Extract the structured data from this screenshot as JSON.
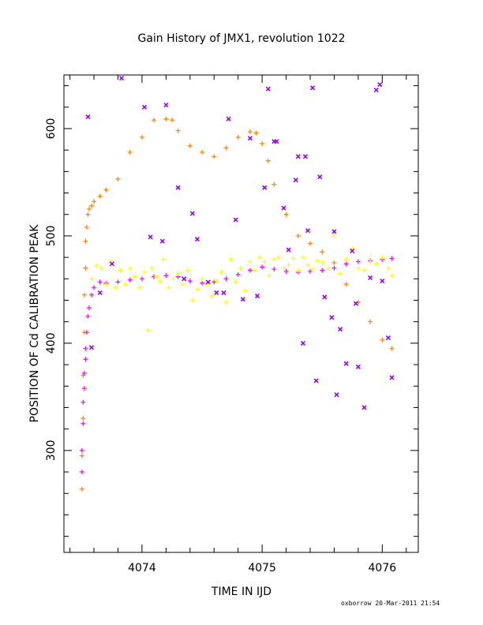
{
  "chart_data": {
    "type": "scatter",
    "title": "Gain History of JMX1, revolution 1022",
    "xlabel": "TIME IN IJD",
    "ylabel": "POSITION OF Cd CALIBRATION PEAK",
    "xlim": [
      4073.35,
      4076.3
    ],
    "ylim": [
      205,
      650
    ],
    "x_ticks": [
      4074,
      4075,
      4076
    ],
    "x_tick_labels": [
      "4074",
      "4075",
      "4076"
    ],
    "y_ticks": [
      300,
      400,
      500,
      600
    ],
    "y_tick_labels": [
      "300",
      "400",
      "500",
      "600"
    ],
    "grid": false,
    "legend": "none",
    "footer": "oxborrow 20-Mar-2011 21:54",
    "series": [
      {
        "marker": "plus",
        "color": "#ff8000",
        "x": [
          4073.5,
          4073.5,
          4073.51,
          4073.51,
          4073.52,
          4073.52,
          4073.53,
          4073.53,
          4073.54,
          4073.55,
          4073.56,
          4073.58,
          4073.6,
          4073.65,
          4073.7,
          4073.8,
          4073.9,
          4074.0,
          4074.1,
          4074.2,
          4074.25,
          4074.3,
          4074.4,
          4074.5,
          4074.6,
          4074.7,
          4074.8,
          4074.9,
          4074.95,
          4075.0,
          4075.05,
          4075.1,
          4075.2,
          4075.3,
          4075.4,
          4075.5,
          4075.6,
          4075.7,
          4075.8,
          4075.9,
          4076.0,
          4076.08
        ],
        "y": [
          264,
          295,
          330,
          370,
          410,
          445,
          470,
          495,
          508,
          520,
          525,
          528,
          532,
          537,
          543,
          553,
          578,
          592,
          608,
          609,
          608,
          598,
          584,
          578,
          574,
          582,
          592,
          597,
          596,
          586,
          570,
          548,
          520,
          500,
          493,
          485,
          475,
          455,
          438,
          420,
          403,
          395
        ]
      },
      {
        "marker": "plus",
        "color": "#ff00ff",
        "x": [
          4073.5,
          4073.5,
          4073.51,
          4073.51,
          4073.52,
          4073.52,
          4073.53,
          4073.53,
          4073.54,
          4073.55,
          4073.56,
          4073.58,
          4073.6,
          4073.65,
          4073.7,
          4073.8,
          4073.9,
          4074.0,
          4074.1,
          4074.2,
          4074.3,
          4074.4,
          4074.5,
          4074.6,
          4074.7,
          4074.8,
          4074.9,
          4075.0,
          4075.1,
          4075.2,
          4075.3,
          4075.4,
          4075.5,
          4075.6,
          4075.7,
          4075.8,
          4075.9,
          4076.0,
          4076.08
        ],
        "y": [
          280,
          300,
          325,
          345,
          358,
          372,
          385,
          395,
          410,
          425,
          433,
          445,
          452,
          457,
          456,
          457,
          459,
          460,
          462,
          463,
          462,
          458,
          456,
          457,
          460,
          464,
          468,
          471,
          469,
          467,
          466,
          467,
          468,
          470,
          474,
          476,
          477,
          478,
          479
        ]
      },
      {
        "marker": "plus",
        "color": "#ffff00",
        "x": [
          4073.58,
          4073.62,
          4073.66,
          4073.7,
          4073.74,
          4073.78,
          4073.82,
          4073.86,
          4073.9,
          4073.94,
          4073.98,
          4074.02,
          4074.05,
          4074.08,
          4074.12,
          4074.15,
          4074.18,
          4074.22,
          4074.26,
          4074.3,
          4074.34,
          4074.38,
          4074.42,
          4074.46,
          4074.5,
          4074.54,
          4074.58,
          4074.62,
          4074.66,
          4074.7,
          4074.74,
          4074.78,
          4074.82,
          4074.86,
          4074.9,
          4074.94,
          4074.98,
          4075.02,
          4075.06,
          4075.1,
          4075.14,
          4075.18,
          4075.22,
          4075.26,
          4075.3,
          4075.34,
          4075.38,
          4075.42,
          4075.46,
          4075.5,
          4075.55,
          4075.6,
          4075.65,
          4075.7,
          4075.75,
          4075.8,
          4075.85,
          4075.9,
          4075.95,
          4076.0,
          4076.05,
          4076.08
        ],
        "y": [
          460,
          472,
          470,
          455,
          476,
          452,
          468,
          455,
          470,
          462,
          452,
          466,
          412,
          470,
          462,
          458,
          478,
          452,
          460,
          465,
          455,
          468,
          440,
          450,
          460,
          455,
          444,
          458,
          466,
          438,
          478,
          457,
          470,
          449,
          476,
          468,
          480,
          476,
          463,
          478,
          480,
          470,
          473,
          479,
          468,
          480,
          473,
          469,
          477,
          475,
          470,
          500,
          465,
          478,
          488,
          470,
          468,
          476,
          474,
          480,
          470,
          463
        ]
      },
      {
        "marker": "x",
        "color": "#9900ff",
        "x": [
          4073.55,
          4073.58,
          4073.65,
          4073.75,
          4073.83,
          4074.02,
          4074.07,
          4074.17,
          4074.2,
          4074.3,
          4074.35,
          4074.42,
          4074.46,
          4074.55,
          4074.62,
          4074.68,
          4074.72,
          4074.78,
          4074.84,
          4074.9,
          4074.96,
          4075.02,
          4075.05,
          4075.1,
          4075.12,
          4075.18,
          4075.22,
          4075.28,
          4075.3,
          4075.34,
          4075.36,
          4075.38,
          4075.42,
          4075.45,
          4075.48,
          4075.52,
          4075.58,
          4075.6,
          4075.62,
          4075.65,
          4075.7,
          4075.75,
          4075.78,
          4075.8,
          4075.85,
          4075.9,
          4075.95,
          4075.98,
          4076.0,
          4076.05,
          4076.08
        ],
        "y": [
          611,
          396,
          447,
          474,
          647,
          620,
          499,
          495,
          622,
          545,
          460,
          521,
          497,
          457,
          447,
          447,
          609,
          515,
          441,
          591,
          444,
          545,
          637,
          588,
          588,
          526,
          487,
          552,
          574,
          400,
          574,
          505,
          638,
          365,
          555,
          443,
          424,
          504,
          352,
          413,
          381,
          486,
          437,
          378,
          340,
          461,
          636,
          641,
          458,
          405,
          368
        ]
      }
    ]
  }
}
